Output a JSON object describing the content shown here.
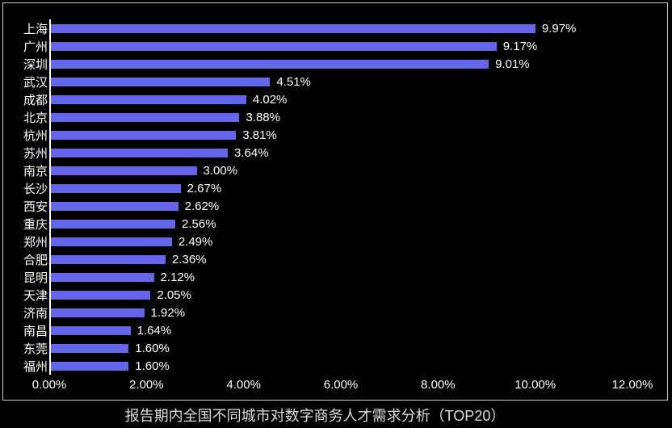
{
  "chart_data": {
    "type": "bar",
    "orientation": "horizontal",
    "title": "报告期内全国不同城市对数字商务人才需求分析（TOP20）",
    "categories": [
      "上海",
      "广州",
      "深圳",
      "武汉",
      "成都",
      "北京",
      "杭州",
      "苏州",
      "南京",
      "长沙",
      "西安",
      "重庆",
      "郑州",
      "合肥",
      "昆明",
      "天津",
      "济南",
      "南昌",
      "东莞",
      "福州"
    ],
    "values": [
      9.97,
      9.17,
      9.01,
      4.51,
      4.02,
      3.88,
      3.81,
      3.64,
      3.0,
      2.67,
      2.62,
      2.56,
      2.49,
      2.36,
      2.12,
      2.05,
      1.92,
      1.64,
      1.6,
      1.6
    ],
    "value_labels": [
      "9.97%",
      "9.17%",
      "9.01%",
      "4.51%",
      "4.02%",
      "3.88%",
      "3.81%",
      "3.64%",
      "3.00%",
      "2.67%",
      "2.62%",
      "2.56%",
      "2.49%",
      "2.36%",
      "2.12%",
      "2.05%",
      "1.92%",
      "1.64%",
      "1.60%",
      "1.60%"
    ],
    "x_ticks": [
      "0.00%",
      "2.00%",
      "4.00%",
      "6.00%",
      "8.00%",
      "10.00%",
      "12.00%"
    ],
    "xlim": [
      0,
      12
    ],
    "x_tick_step": 2,
    "grid": false,
    "legend": "none",
    "colors": {
      "bar": "#6565ec",
      "background": "#000000",
      "text": "#ffffff",
      "axis_line": "#ffffff",
      "frame_border": "#c9c9c9",
      "title_text": "#dcdcdc"
    }
  }
}
